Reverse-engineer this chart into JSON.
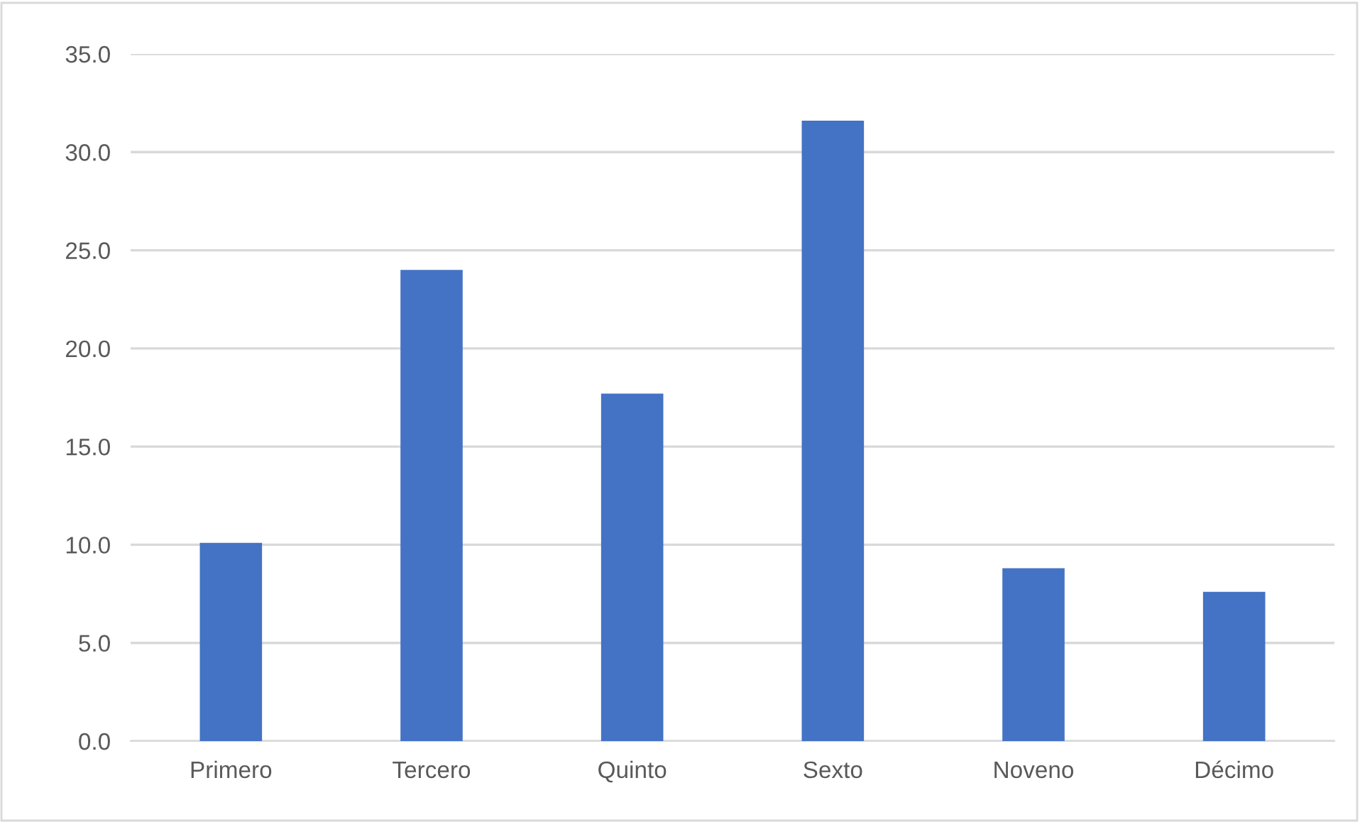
{
  "chart_data": {
    "type": "bar",
    "categories": [
      "Primero",
      "Tercero",
      "Quinto",
      "Sexto",
      "Noveno",
      "Décimo"
    ],
    "values": [
      10.1,
      24.0,
      17.7,
      31.6,
      8.8,
      7.6
    ],
    "color": "#4472c4",
    "ylim": [
      0,
      35
    ],
    "yticks": [
      {
        "value": 0,
        "label": "0.0"
      },
      {
        "value": 5,
        "label": "5.0"
      },
      {
        "value": 10,
        "label": "10.0"
      },
      {
        "value": 15,
        "label": "15.0"
      },
      {
        "value": 20,
        "label": "20.0"
      },
      {
        "value": 25,
        "label": "25.0"
      },
      {
        "value": 30,
        "label": "30.0"
      },
      {
        "value": 35,
        "label": "35.0"
      }
    ],
    "grid": "y",
    "legend": false
  }
}
